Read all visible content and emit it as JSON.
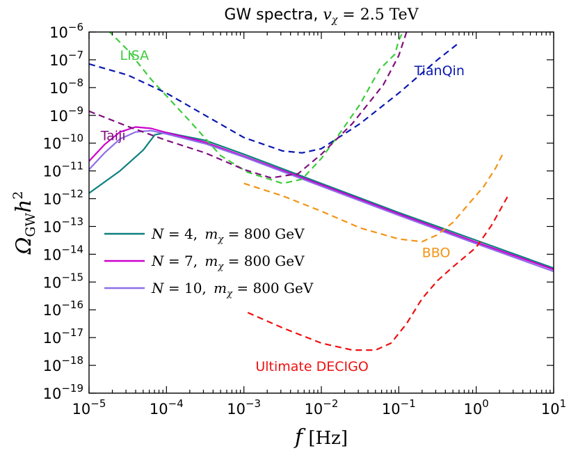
{
  "chart_data": {
    "type": "line",
    "title": "GW spectra, v_χ = 2.5 TeV",
    "title_parts": {
      "text": "GW spectra, ",
      "var": "v",
      "sub": "χ",
      "rest": " = 2.5 TeV"
    },
    "xlabel": "f [Hz]",
    "xlabel_parts": {
      "var": "f",
      "unit": " [Hz]"
    },
    "ylabel": "Ω_GW h²",
    "ylabel_parts": {
      "omega": "Ω",
      "sub": "GW",
      "h": "h",
      "sup": "2"
    },
    "x_scale": "log",
    "y_scale": "log",
    "xlim": [
      1e-05,
      10
    ],
    "ylim": [
      1e-19,
      1e-06
    ],
    "x_ticks": [
      {
        "exp": -5,
        "label": "−5"
      },
      {
        "exp": -4,
        "label": "−4"
      },
      {
        "exp": -3,
        "label": "−3"
      },
      {
        "exp": -2,
        "label": "−2"
      },
      {
        "exp": -1,
        "label": "−1"
      },
      {
        "exp": 0,
        "label": "0"
      },
      {
        "exp": 1,
        "label": "1"
      }
    ],
    "y_ticks": [
      {
        "exp": -19,
        "label": "−19"
      },
      {
        "exp": -18,
        "label": "−18"
      },
      {
        "exp": -17,
        "label": "−17"
      },
      {
        "exp": -16,
        "label": "−16"
      },
      {
        "exp": -15,
        "label": "−15"
      },
      {
        "exp": -14,
        "label": "−14"
      },
      {
        "exp": -13,
        "label": "−13"
      },
      {
        "exp": -12,
        "label": "−12"
      },
      {
        "exp": -11,
        "label": "−11"
      },
      {
        "exp": -10,
        "label": "−10"
      },
      {
        "exp": -9,
        "label": "−9"
      },
      {
        "exp": -8,
        "label": "−8"
      },
      {
        "exp": -7,
        "label": "−7"
      },
      {
        "exp": -6,
        "label": "−6"
      }
    ],
    "tick_base": "10",
    "grid": false,
    "legend_position": "center-left",
    "series": [
      {
        "name": "N = 4, m_χ = 800 GeV",
        "legend_parts": {
          "n": "N",
          "eq": " = 4, ",
          "m": "m",
          "sub": "χ",
          "rest": " = 800 GeV"
        },
        "color": "#0f7f7f",
        "style": "solid",
        "width": 2.2,
        "points": [
          [
            -5,
            -11.8
          ],
          [
            -4.6,
            -11.0
          ],
          [
            -4.3,
            -10.25
          ],
          [
            -4.15,
            -9.7
          ],
          [
            -4.0,
            -9.62
          ],
          [
            -3.5,
            -9.9
          ],
          [
            -3.0,
            -10.4
          ],
          [
            -2.0,
            -11.45
          ],
          [
            -1.0,
            -12.5
          ],
          [
            0.0,
            -13.5
          ],
          [
            1.0,
            -14.5
          ]
        ]
      },
      {
        "name": "N = 7, m_χ = 800 GeV",
        "legend_parts": {
          "n": "N",
          "eq": " = 7, ",
          "m": "m",
          "sub": "χ",
          "rest": " = 800 GeV"
        },
        "color": "#cc00cc",
        "style": "solid",
        "width": 2.2,
        "points": [
          [
            -5,
            -10.65
          ],
          [
            -4.8,
            -10.05
          ],
          [
            -4.6,
            -9.6
          ],
          [
            -4.4,
            -9.42
          ],
          [
            -4.2,
            -9.47
          ],
          [
            -4.0,
            -9.62
          ],
          [
            -3.5,
            -9.97
          ],
          [
            -3.0,
            -10.47
          ],
          [
            -2.0,
            -11.5
          ],
          [
            -1.0,
            -12.55
          ],
          [
            0.0,
            -13.57
          ],
          [
            1.0,
            -14.55
          ]
        ]
      },
      {
        "name": "N = 10, m_χ = 800 GeV",
        "legend_parts": {
          "n": "N",
          "eq": " = 10, ",
          "m": "m",
          "sub": "χ",
          "rest": " = 800 GeV"
        },
        "color": "#8e6ee8",
        "style": "solid",
        "width": 2.2,
        "points": [
          [
            -5,
            -10.95
          ],
          [
            -4.8,
            -10.35
          ],
          [
            -4.6,
            -9.85
          ],
          [
            -4.4,
            -9.6
          ],
          [
            -4.2,
            -9.55
          ],
          [
            -4.0,
            -9.67
          ],
          [
            -3.5,
            -10.02
          ],
          [
            -3.0,
            -10.5
          ],
          [
            -2.0,
            -11.55
          ],
          [
            -1.0,
            -12.6
          ],
          [
            0.0,
            -13.62
          ],
          [
            1.0,
            -14.62
          ]
        ]
      },
      {
        "name": "LISA",
        "label": "LISA",
        "label_pos": [
          -4.6,
          -7.0
        ],
        "color": "#3ccc3c",
        "style": "dashed",
        "width": 2.2,
        "points": [
          [
            -4.75,
            -5.95
          ],
          [
            -4.5,
            -6.65
          ],
          [
            -4.2,
            -7.7
          ],
          [
            -4.0,
            -8.3
          ],
          [
            -3.7,
            -9.2
          ],
          [
            -3.3,
            -10.45
          ],
          [
            -2.95,
            -11.05
          ],
          [
            -2.5,
            -11.45
          ],
          [
            -2.25,
            -11.3
          ],
          [
            -2.0,
            -10.55
          ],
          [
            -1.75,
            -9.6
          ],
          [
            -1.5,
            -8.6
          ],
          [
            -1.25,
            -7.35
          ],
          [
            -1.05,
            -6.8
          ],
          [
            -1.0,
            -6.3
          ],
          [
            -0.93,
            -5.9
          ]
        ]
      },
      {
        "name": "TianQin",
        "label": "TianQin",
        "label_pos": [
          -0.8,
          -7.55
        ],
        "color": "#0a18b0",
        "style": "dashed",
        "width": 2.2,
        "points": [
          [
            -5,
            -7.15
          ],
          [
            -4.5,
            -7.55
          ],
          [
            -4.0,
            -8.2
          ],
          [
            -3.5,
            -9.0
          ],
          [
            -3.0,
            -9.8
          ],
          [
            -2.5,
            -10.28
          ],
          [
            -2.25,
            -10.35
          ],
          [
            -2.0,
            -10.2
          ],
          [
            -1.5,
            -9.3
          ],
          [
            -1.0,
            -8.2
          ],
          [
            -0.5,
            -7.0
          ],
          [
            -0.25,
            -6.45
          ]
        ]
      },
      {
        "name": "Taiji",
        "label": "Taiji",
        "label_pos": [
          -4.85,
          -9.9
        ],
        "color": "#7f0f7f",
        "style": "dashed",
        "width": 2.2,
        "points": [
          [
            -5,
            -8.85
          ],
          [
            -4.5,
            -9.4
          ],
          [
            -4.0,
            -9.9
          ],
          [
            -3.5,
            -10.35
          ],
          [
            -3.0,
            -10.95
          ],
          [
            -2.65,
            -11.25
          ],
          [
            -2.3,
            -11.1
          ],
          [
            -2.0,
            -10.4
          ],
          [
            -1.6,
            -9.3
          ],
          [
            -1.2,
            -7.9
          ],
          [
            -1.0,
            -6.85
          ],
          [
            -0.9,
            -6.0
          ]
        ]
      },
      {
        "name": "BBO",
        "label": "BBO",
        "label_pos": [
          -0.7,
          -14.1
        ],
        "color": "#f39415",
        "style": "dashed",
        "width": 2.2,
        "points": [
          [
            -3.0,
            -11.45
          ],
          [
            -2.5,
            -11.9
          ],
          [
            -2.0,
            -12.45
          ],
          [
            -1.5,
            -13.05
          ],
          [
            -1.0,
            -13.45
          ],
          [
            -0.7,
            -13.55
          ],
          [
            -0.5,
            -13.3
          ],
          [
            -0.3,
            -12.85
          ],
          [
            -0.1,
            -12.2
          ],
          [
            0.1,
            -11.55
          ],
          [
            0.25,
            -10.9
          ],
          [
            0.35,
            -10.35
          ]
        ]
      },
      {
        "name": "Ultimate DECIGO",
        "label": "Ultimate DECIGO",
        "label_pos": [
          -2.85,
          -18.2
        ],
        "color": "#ee1010",
        "style": "dashed",
        "width": 2.2,
        "points": [
          [
            -2.95,
            -16.1
          ],
          [
            -2.5,
            -16.65
          ],
          [
            -2.0,
            -17.2
          ],
          [
            -1.6,
            -17.45
          ],
          [
            -1.3,
            -17.45
          ],
          [
            -1.1,
            -17.2
          ],
          [
            -0.9,
            -16.5
          ],
          [
            -0.7,
            -15.6
          ],
          [
            -0.5,
            -14.95
          ],
          [
            -0.3,
            -14.45
          ],
          [
            0.0,
            -13.75
          ],
          [
            0.2,
            -12.95
          ],
          [
            0.35,
            -12.2
          ],
          [
            0.42,
            -11.85
          ]
        ]
      }
    ]
  }
}
